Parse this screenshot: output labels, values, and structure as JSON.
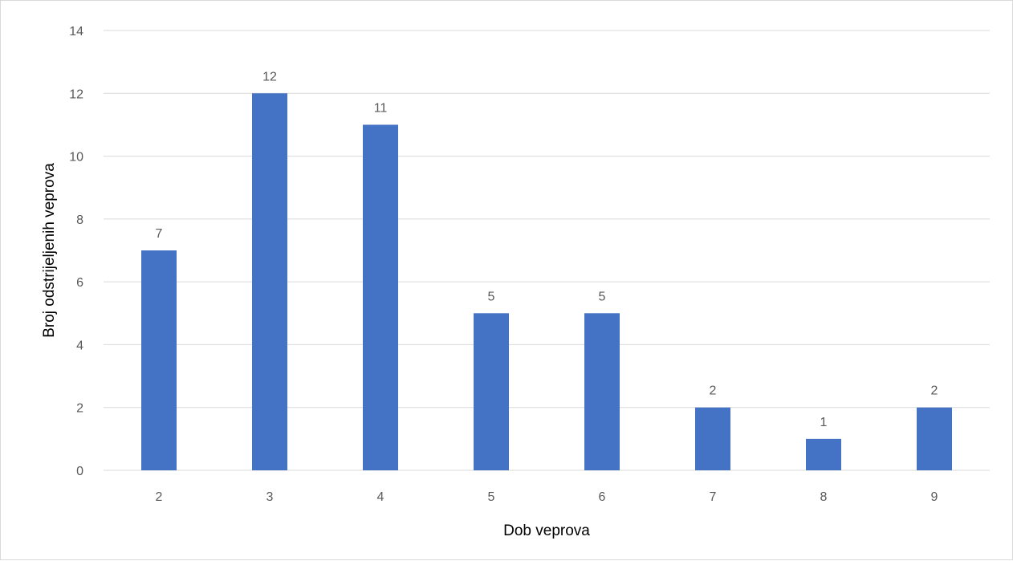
{
  "chart_data": {
    "type": "bar",
    "title": "",
    "xlabel": "Dob veprova",
    "ylabel": "Broj odstrijeljenih veprova",
    "categories": [
      "2",
      "3",
      "4",
      "5",
      "6",
      "7",
      "8",
      "9"
    ],
    "values": [
      7,
      12,
      11,
      5,
      5,
      2,
      1,
      2
    ],
    "ylim": [
      0,
      14
    ],
    "yticks": [
      0,
      2,
      4,
      6,
      8,
      10,
      12,
      14
    ],
    "grid": true,
    "legend": "none",
    "data_labels": true,
    "colors": {
      "bar": "#4472c4",
      "grid": "#d9d9d9",
      "tick_text": "#595959",
      "axis_title": "#000000"
    }
  }
}
